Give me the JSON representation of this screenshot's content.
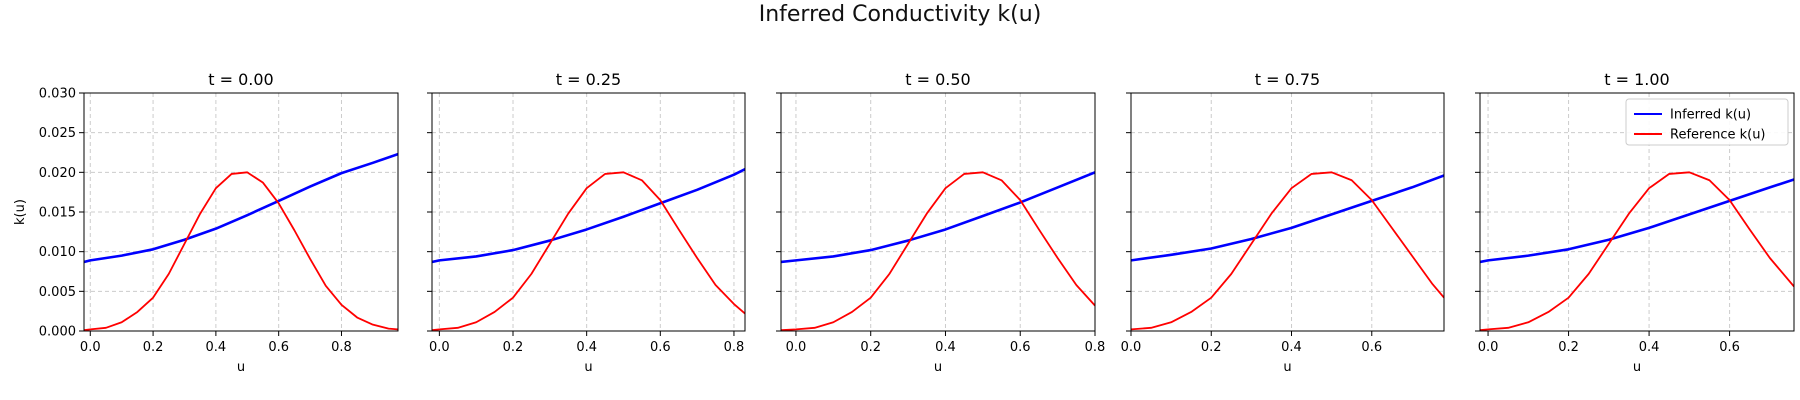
{
  "figure": {
    "title": "Inferred Conductivity k(u)"
  },
  "legend": {
    "placement": "upper-right",
    "entries": [
      "Inferred k(u)",
      "Reference k(u)"
    ]
  },
  "colors": {
    "inferred": "#0000ff",
    "reference": "#ff0000",
    "grid": "#cccccc"
  },
  "chart_data": [
    {
      "type": "line",
      "title": "t = 0.00",
      "xlabel": "u",
      "ylabel": "k(u)",
      "xlim": [
        -0.02,
        0.98
      ],
      "ylim": [
        0,
        0.03
      ],
      "grid": true,
      "xticks": [
        "0.0",
        "0.2",
        "0.4",
        "0.6",
        "0.8"
      ],
      "yticks": [
        "0.000",
        "0.005",
        "0.010",
        "0.015",
        "0.020",
        "0.025",
        "0.030"
      ],
      "series": [
        {
          "name": "Inferred k(u)",
          "x": [
            -0.02,
            0.0,
            0.1,
            0.2,
            0.3,
            0.4,
            0.5,
            0.6,
            0.7,
            0.8,
            0.9,
            0.98
          ],
          "y": [
            0.0087,
            0.0089,
            0.0095,
            0.0103,
            0.0115,
            0.0129,
            0.0146,
            0.0164,
            0.0182,
            0.0199,
            0.0212,
            0.0223
          ]
        },
        {
          "name": "Reference k(u)",
          "x": [
            -0.02,
            0.0,
            0.05,
            0.1,
            0.15,
            0.2,
            0.25,
            0.3,
            0.35,
            0.4,
            0.45,
            0.5,
            0.55,
            0.6,
            0.65,
            0.7,
            0.75,
            0.8,
            0.85,
            0.9,
            0.95,
            0.98
          ],
          "y": [
            0.0001,
            0.0002,
            0.0004,
            0.0011,
            0.0024,
            0.0042,
            0.0072,
            0.011,
            0.0148,
            0.018,
            0.0198,
            0.02,
            0.0187,
            0.0161,
            0.0127,
            0.0091,
            0.0057,
            0.0033,
            0.0017,
            0.0008,
            0.0003,
            0.0002
          ]
        }
      ]
    },
    {
      "type": "line",
      "title": "t = 0.25",
      "xlabel": "u",
      "ylabel": "",
      "xlim": [
        -0.02,
        0.83
      ],
      "ylim": [
        0,
        0.03
      ],
      "grid": true,
      "xticks": [
        "0.0",
        "0.2",
        "0.4",
        "0.6",
        "0.8"
      ],
      "yticks": [],
      "series": [
        {
          "name": "Inferred k(u)",
          "x": [
            -0.02,
            0.0,
            0.1,
            0.2,
            0.3,
            0.4,
            0.5,
            0.6,
            0.7,
            0.8,
            0.83
          ],
          "y": [
            0.0087,
            0.0089,
            0.0094,
            0.0102,
            0.0114,
            0.0128,
            0.0144,
            0.0161,
            0.0178,
            0.0197,
            0.0204
          ]
        },
        {
          "name": "Reference k(u)",
          "x": [
            -0.02,
            0.0,
            0.05,
            0.1,
            0.15,
            0.2,
            0.25,
            0.3,
            0.35,
            0.4,
            0.45,
            0.5,
            0.55,
            0.6,
            0.65,
            0.7,
            0.75,
            0.8,
            0.83
          ],
          "y": [
            0.0001,
            0.0002,
            0.0004,
            0.0011,
            0.0024,
            0.0042,
            0.0072,
            0.011,
            0.0148,
            0.018,
            0.0198,
            0.02,
            0.019,
            0.0165,
            0.0128,
            0.0092,
            0.0058,
            0.0034,
            0.0022
          ]
        }
      ]
    },
    {
      "type": "line",
      "title": "t = 0.50",
      "xlabel": "u",
      "ylabel": "",
      "xlim": [
        -0.04,
        0.8
      ],
      "ylim": [
        0,
        0.03
      ],
      "grid": true,
      "xticks": [
        "0.0",
        "0.2",
        "0.4",
        "0.6",
        "0.8"
      ],
      "yticks": [],
      "series": [
        {
          "name": "Inferred k(u)",
          "x": [
            -0.04,
            0.0,
            0.1,
            0.2,
            0.3,
            0.4,
            0.5,
            0.6,
            0.7,
            0.8
          ],
          "y": [
            0.0087,
            0.0089,
            0.0094,
            0.0102,
            0.0114,
            0.0128,
            0.0145,
            0.0162,
            0.0181,
            0.02
          ]
        },
        {
          "name": "Reference k(u)",
          "x": [
            -0.04,
            0.0,
            0.05,
            0.1,
            0.15,
            0.2,
            0.25,
            0.3,
            0.35,
            0.4,
            0.45,
            0.5,
            0.55,
            0.6,
            0.65,
            0.7,
            0.75,
            0.8
          ],
          "y": [
            0.0001,
            0.0002,
            0.0004,
            0.0011,
            0.0024,
            0.0042,
            0.0072,
            0.011,
            0.0148,
            0.018,
            0.0198,
            0.02,
            0.019,
            0.0165,
            0.0128,
            0.0092,
            0.0058,
            0.0032
          ]
        }
      ]
    },
    {
      "type": "line",
      "title": "t = 0.75",
      "xlabel": "u",
      "ylabel": "",
      "xlim": [
        0.0,
        0.78
      ],
      "ylim": [
        0,
        0.03
      ],
      "grid": true,
      "xticks": [
        "0.0",
        "0.2",
        "0.4",
        "0.6"
      ],
      "yticks": [],
      "series": [
        {
          "name": "Inferred k(u)",
          "x": [
            0.0,
            0.1,
            0.2,
            0.3,
            0.4,
            0.5,
            0.6,
            0.7,
            0.78
          ],
          "y": [
            0.0089,
            0.0096,
            0.0104,
            0.0116,
            0.013,
            0.0147,
            0.0164,
            0.0181,
            0.0196
          ]
        },
        {
          "name": "Reference k(u)",
          "x": [
            0.0,
            0.05,
            0.1,
            0.15,
            0.2,
            0.25,
            0.3,
            0.35,
            0.4,
            0.45,
            0.5,
            0.55,
            0.6,
            0.65,
            0.7,
            0.75,
            0.78
          ],
          "y": [
            0.0002,
            0.0004,
            0.0011,
            0.0024,
            0.0042,
            0.0072,
            0.011,
            0.0148,
            0.018,
            0.0198,
            0.02,
            0.019,
            0.0165,
            0.013,
            0.0095,
            0.006,
            0.0042
          ]
        }
      ]
    },
    {
      "type": "line",
      "title": "t = 1.00",
      "xlabel": "u",
      "ylabel": "",
      "xlim": [
        -0.02,
        0.76
      ],
      "ylim": [
        0,
        0.03
      ],
      "grid": true,
      "xticks": [
        "0.0",
        "0.2",
        "0.4",
        "0.6"
      ],
      "yticks": [],
      "series": [
        {
          "name": "Inferred k(u)",
          "x": [
            -0.02,
            0.0,
            0.1,
            0.2,
            0.3,
            0.4,
            0.5,
            0.6,
            0.7,
            0.76
          ],
          "y": [
            0.0087,
            0.0089,
            0.0095,
            0.0103,
            0.0115,
            0.013,
            0.0147,
            0.0164,
            0.0181,
            0.0191
          ]
        },
        {
          "name": "Reference k(u)",
          "x": [
            -0.02,
            0.0,
            0.05,
            0.1,
            0.15,
            0.2,
            0.25,
            0.3,
            0.35,
            0.4,
            0.45,
            0.5,
            0.55,
            0.6,
            0.65,
            0.7,
            0.76
          ],
          "y": [
            0.0001,
            0.0002,
            0.0004,
            0.0011,
            0.0024,
            0.0042,
            0.0072,
            0.011,
            0.0148,
            0.018,
            0.0198,
            0.02,
            0.019,
            0.0165,
            0.0128,
            0.0092,
            0.0056
          ]
        }
      ]
    }
  ]
}
